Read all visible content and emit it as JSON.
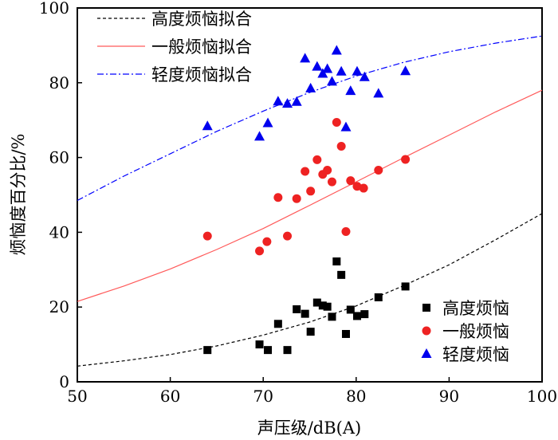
{
  "chart_data": {
    "type": "scatter",
    "xlabel": "声压级/dB(A)",
    "ylabel": "烦恼度百分比/%",
    "xlim": [
      50,
      100
    ],
    "ylim": [
      0,
      100
    ],
    "xticks": [
      50,
      60,
      70,
      80,
      90,
      100
    ],
    "yticks": [
      0,
      20,
      40,
      60,
      80,
      100
    ],
    "grid": false,
    "legend_fits_position": "top-left",
    "legend_points_position": "bottom-right",
    "fits": [
      {
        "name": "高度烦恼拟合",
        "color": "#000000",
        "dash": "dashed",
        "x": [
          50,
          55,
          60,
          65,
          70,
          75,
          80,
          85,
          90,
          95,
          100
        ],
        "y": [
          4.2,
          5.6,
          7.3,
          9.6,
          12.5,
          16.0,
          20.3,
          25.6,
          31.3,
          38.0,
          45.0
        ]
      },
      {
        "name": "一般烦恼拟合",
        "color": "#ff5a5a",
        "dash": "solid",
        "x": [
          50,
          55,
          60,
          65,
          70,
          75,
          80,
          85,
          90,
          95,
          100
        ],
        "y": [
          21.5,
          25.6,
          30.2,
          35.4,
          41.0,
          47.2,
          53.5,
          59.8,
          66.0,
          72.2,
          78.0
        ]
      },
      {
        "name": "轻度烦恼拟合",
        "color": "#0000ff",
        "dash": "dashdot",
        "x": [
          50,
          55,
          60,
          65,
          70,
          75,
          80,
          85,
          90,
          95,
          100
        ],
        "y": [
          48.5,
          55.0,
          61.0,
          67.0,
          72.4,
          77.4,
          81.8,
          85.4,
          88.3,
          90.6,
          92.5
        ]
      }
    ],
    "series": [
      {
        "name": "高度烦恼",
        "marker": "square",
        "color": "#000000",
        "points": [
          [
            64,
            8.5
          ],
          [
            69.6,
            10
          ],
          [
            70.5,
            8.5
          ],
          [
            71.6,
            15.5
          ],
          [
            72.6,
            8.5
          ],
          [
            73.6,
            19.4
          ],
          [
            74.5,
            18.2
          ],
          [
            75.1,
            13.4
          ],
          [
            75.8,
            21.2
          ],
          [
            76.4,
            20.4
          ],
          [
            76.9,
            20.1
          ],
          [
            77.4,
            17.4
          ],
          [
            77.9,
            32.2
          ],
          [
            78.4,
            28.6
          ],
          [
            78.9,
            12.8
          ],
          [
            79.4,
            19.3
          ],
          [
            80.1,
            17.6
          ],
          [
            80.9,
            18.1
          ],
          [
            82.4,
            22.6
          ],
          [
            85.3,
            25.5
          ]
        ]
      },
      {
        "name": "一般烦恼",
        "marker": "circle",
        "color": "#ee2222",
        "points": [
          [
            64,
            39
          ],
          [
            69.6,
            35
          ],
          [
            70.4,
            37.5
          ],
          [
            71.6,
            49.3
          ],
          [
            72.6,
            39
          ],
          [
            73.6,
            49
          ],
          [
            74.5,
            56.3
          ],
          [
            75.1,
            51
          ],
          [
            75.8,
            59.4
          ],
          [
            76.4,
            55.5
          ],
          [
            76.9,
            56.6
          ],
          [
            77.4,
            53.5
          ],
          [
            77.9,
            69.4
          ],
          [
            78.4,
            63
          ],
          [
            78.9,
            40.2
          ],
          [
            79.4,
            53.8
          ],
          [
            80.1,
            52.3
          ],
          [
            80.8,
            51.8
          ],
          [
            82.4,
            56.6
          ],
          [
            85.3,
            59.5
          ]
        ]
      },
      {
        "name": "轻度烦恼",
        "marker": "triangle",
        "color": "#0000ee",
        "points": [
          [
            64,
            68.4
          ],
          [
            69.6,
            65.6
          ],
          [
            70.5,
            69.2
          ],
          [
            71.6,
            75
          ],
          [
            72.6,
            74.4
          ],
          [
            73.6,
            74.9
          ],
          [
            74.5,
            86.5
          ],
          [
            75.1,
            78.5
          ],
          [
            75.8,
            84.3
          ],
          [
            76.4,
            82.4
          ],
          [
            76.9,
            83.7
          ],
          [
            77.4,
            80.3
          ],
          [
            77.9,
            88.6
          ],
          [
            78.4,
            83
          ],
          [
            78.9,
            68.1
          ],
          [
            79.4,
            77.8
          ],
          [
            80.1,
            83
          ],
          [
            80.9,
            81.5
          ],
          [
            82.4,
            77.1
          ],
          [
            85.3,
            83.1
          ]
        ]
      }
    ]
  }
}
